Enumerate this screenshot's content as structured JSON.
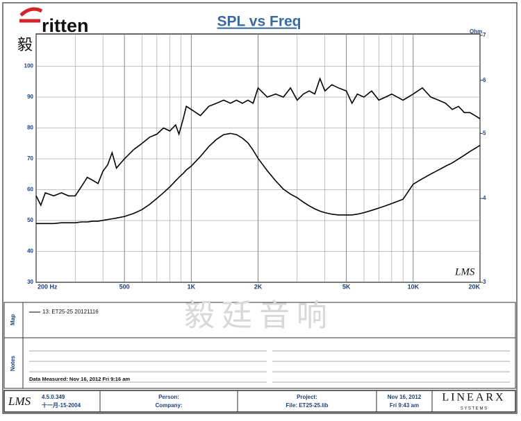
{
  "logo": {
    "brand": "ritten",
    "chinese": "毅廷音响"
  },
  "chart_data": {
    "type": "line",
    "title": "SPL vs Freq",
    "y2_label": "Ohm",
    "xlog": true,
    "y2log": true,
    "xlim": [
      200,
      20000
    ],
    "xticks": [
      {
        "value": 200,
        "label": "200  Hz"
      },
      500,
      {
        "value": 1000,
        "label": "1K"
      },
      {
        "value": 2000,
        "label": "2K"
      },
      {
        "value": 5000,
        "label": "5K"
      },
      {
        "value": 10000,
        "label": "10K"
      },
      {
        "value": 20000,
        "label": "20K"
      }
    ],
    "xminorticks": [
      300,
      400,
      600,
      700,
      800,
      900,
      3000,
      4000,
      6000,
      7000,
      8000,
      9000
    ],
    "ylim": [
      30,
      110
    ],
    "yticks": [
      30,
      40,
      50,
      60,
      70,
      80,
      90,
      100
    ],
    "y2lim": [
      3,
      7
    ],
    "y2ticks": [
      3,
      4,
      5,
      6,
      7
    ],
    "grid": true,
    "x": [
      200,
      210,
      220,
      240,
      260,
      280,
      300,
      320,
      340,
      360,
      380,
      400,
      420,
      440,
      460,
      500,
      550,
      600,
      650,
      700,
      750,
      800,
      850,
      880,
      920,
      950,
      1000,
      1100,
      1200,
      1300,
      1400,
      1500,
      1600,
      1700,
      1800,
      1900,
      2000,
      2200,
      2400,
      2600,
      2800,
      3000,
      3200,
      3400,
      3600,
      3800,
      4000,
      4300,
      4600,
      5000,
      5300,
      5600,
      6000,
      6500,
      7000,
      7500,
      8000,
      9000,
      10000,
      11000,
      12000,
      13000,
      14000,
      15000,
      16000,
      17000,
      18000,
      19000,
      20000
    ],
    "series": [
      {
        "name": "SPL",
        "color": "#000000",
        "values": [
          58,
          55,
          59,
          58,
          59,
          58,
          58,
          61,
          64,
          63,
          62,
          66,
          68,
          72,
          67,
          70,
          73,
          75,
          77,
          78,
          80,
          79,
          81,
          78,
          83,
          87,
          86,
          84,
          87,
          88,
          89,
          88,
          89,
          88,
          89,
          88,
          93,
          90,
          91,
          90,
          93,
          89,
          91,
          92,
          91,
          96,
          92,
          94,
          93,
          92,
          88,
          91,
          90,
          92,
          89,
          90,
          91,
          89,
          91,
          93,
          90,
          89,
          88,
          86,
          87,
          85,
          85,
          84,
          83
        ]
      },
      {
        "name": "Impedance",
        "color": "#000000",
        "axis": "y2",
        "values": [
          3.67,
          3.67,
          3.67,
          3.67,
          3.68,
          3.68,
          3.68,
          3.69,
          3.69,
          3.7,
          3.7,
          3.71,
          3.72,
          3.73,
          3.74,
          3.76,
          3.8,
          3.85,
          3.92,
          4.0,
          4.08,
          4.16,
          4.25,
          4.3,
          4.36,
          4.41,
          4.47,
          4.62,
          4.78,
          4.9,
          4.98,
          5.0,
          4.98,
          4.92,
          4.84,
          4.72,
          4.59,
          4.4,
          4.25,
          4.13,
          4.06,
          4.01,
          3.95,
          3.9,
          3.86,
          3.83,
          3.81,
          3.79,
          3.78,
          3.78,
          3.78,
          3.79,
          3.81,
          3.84,
          3.87,
          3.9,
          3.93,
          3.99,
          4.2,
          4.28,
          4.35,
          4.41,
          4.47,
          4.52,
          4.58,
          4.64,
          4.7,
          4.75,
          4.8
        ]
      }
    ]
  },
  "watermark": "毅廷音响",
  "lms_mark": "LMS",
  "map": {
    "label": "Map",
    "entry": "13: ET25-25 20121116"
  },
  "notes": {
    "label": "Notes",
    "measured": "Data Measured: Nov 16, 2012  Fri 9:16 am"
  },
  "footer": {
    "logo": "LMS",
    "version": "4.5.0.349",
    "date": "十一月-15-2004",
    "person": "Person:",
    "company": "Company:",
    "project": "Project:",
    "file": "File: ET25-25.lib",
    "print_date": "Nov 16, 2012",
    "print_time": "Fri  9:43 am",
    "brand": "LINEARX",
    "brand_sub": "S Y S T E M S"
  }
}
